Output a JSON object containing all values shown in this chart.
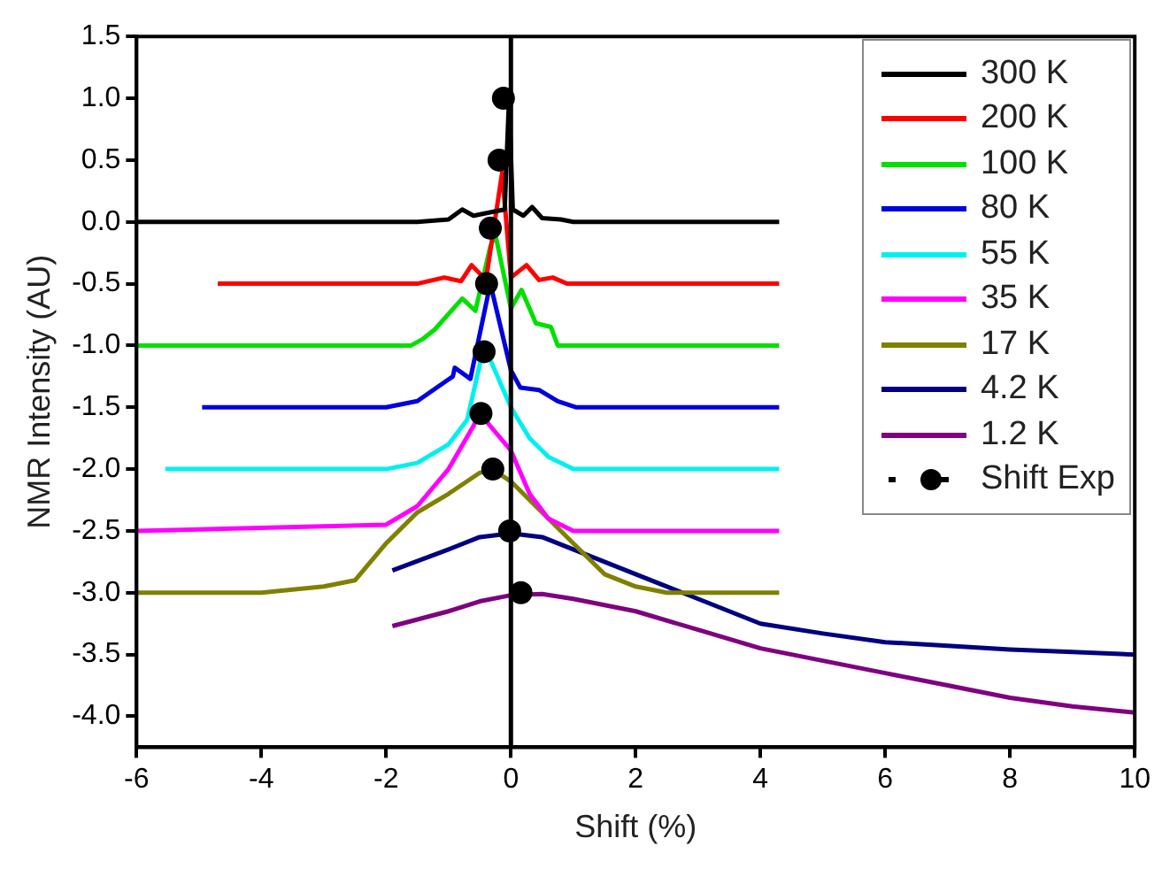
{
  "chart_data": {
    "type": "line",
    "xlabel": "Shift (%)",
    "ylabel": "NMR Intensity (AU)",
    "xlim": [
      -6,
      10
    ],
    "xticks": [
      -6,
      -4,
      -2,
      0,
      2,
      4,
      6,
      8,
      10
    ],
    "ylim": [
      -4.25,
      1.5
    ],
    "yticks": [
      {
        "value": -4,
        "label": "-4.0"
      },
      -3.5,
      {
        "value": -3,
        "label": "-3.0"
      },
      -2.5,
      {
        "value": -2,
        "label": "-2.0"
      },
      -1.5,
      {
        "value": -1,
        "label": "-1.0"
      },
      -0.5,
      {
        "value": 0,
        "label": "0.0"
      },
      0.5,
      {
        "value": 1,
        "label": "1.0"
      },
      1.5
    ],
    "grid": false,
    "legend": "top right",
    "marker": "none",
    "line_style": "solid",
    "ref_lines": [
      {
        "axis": "x",
        "value": 0,
        "color": "#000000"
      }
    ],
    "series": [
      {
        "name": "300 K",
        "color": "#000000",
        "x": [
          -6,
          -1.5,
          -1,
          -0.78,
          -0.6,
          -0.3,
          -0.1,
          -0.03,
          0.03,
          0.2,
          0.34,
          0.5,
          0.8,
          1,
          4.3
        ],
        "values": [
          0,
          0,
          0.02,
          0.1,
          0.05,
          0.08,
          0.1,
          1.0,
          0.1,
          0.05,
          0.12,
          0.03,
          0.02,
          0,
          0
        ]
      },
      {
        "name": "200 K",
        "color": "#ff0000",
        "x": [
          -4.7,
          -1.5,
          -1.07,
          -0.8,
          -0.63,
          -0.4,
          -0.14,
          0,
          0.25,
          0.45,
          0.67,
          0.9,
          4.3
        ],
        "values": [
          -0.5,
          -0.5,
          -0.45,
          -0.48,
          -0.35,
          -0.47,
          0.4,
          -0.45,
          -0.35,
          -0.47,
          -0.45,
          -0.5,
          -0.5
        ]
      },
      {
        "name": "100 K",
        "color": "#00e000",
        "x": [
          -6,
          -1.6,
          -1.42,
          -1.22,
          -0.78,
          -0.57,
          -0.33,
          -0.25,
          0,
          0.17,
          0.4,
          0.64,
          0.75,
          1,
          4.3
        ],
        "values": [
          -1.0,
          -1.0,
          -0.95,
          -0.87,
          -0.62,
          -0.72,
          -0.2,
          -0.1,
          -0.7,
          -0.55,
          -0.82,
          -0.85,
          -1.0,
          -1.0,
          -1.0
        ]
      },
      {
        "name": "80 K",
        "color": "#0000e0",
        "x": [
          -4.95,
          -2,
          -1.5,
          -0.93,
          -0.9,
          -0.65,
          -0.33,
          0,
          0.15,
          0.45,
          0.75,
          1.05,
          4.3
        ],
        "values": [
          -1.5,
          -1.5,
          -1.45,
          -1.25,
          -1.18,
          -1.27,
          -0.5,
          -1.2,
          -1.34,
          -1.36,
          -1.45,
          -1.5,
          -1.5
        ]
      },
      {
        "name": "55 K",
        "color": "#00f0f0",
        "x": [
          -5.54,
          -2,
          -1.5,
          -1,
          -0.7,
          -0.43,
          0,
          0.3,
          0.6,
          1,
          4.3
        ],
        "values": [
          -2.0,
          -2.0,
          -1.95,
          -1.8,
          -1.6,
          -1.0,
          -1.5,
          -1.75,
          -1.9,
          -2.0,
          -2.0
        ]
      },
      {
        "name": "35 K",
        "color": "#ff00ff",
        "x": [
          -6,
          -2,
          -1.5,
          -1,
          -0.6,
          -0.5,
          0,
          0.3,
          0.6,
          1,
          4.3
        ],
        "values": [
          -2.5,
          -2.45,
          -2.3,
          -2.0,
          -1.65,
          -1.55,
          -1.85,
          -2.2,
          -2.4,
          -2.5,
          -2.5
        ]
      },
      {
        "name": "17 K",
        "color": "#808000",
        "x": [
          -6,
          -4,
          -3,
          -2.5,
          -2,
          -1.5,
          -1,
          -0.5,
          -0.3,
          0,
          0.5,
          1,
          1.5,
          2,
          2.5,
          4.3
        ],
        "values": [
          -3.0,
          -3.0,
          -2.95,
          -2.9,
          -2.6,
          -2.35,
          -2.2,
          -2.03,
          -2.0,
          -2.1,
          -2.35,
          -2.6,
          -2.85,
          -2.95,
          -3.0,
          -3.0
        ]
      },
      {
        "name": "4.2 K",
        "color": "#000080",
        "x": [
          -1.9,
          -1,
          -0.5,
          0,
          0.5,
          1,
          2,
          3,
          4,
          5,
          6,
          7,
          8,
          9,
          10
        ],
        "values": [
          -2.82,
          -2.65,
          -2.55,
          -2.52,
          -2.55,
          -2.65,
          -2.85,
          -3.05,
          -3.25,
          -3.33,
          -3.4,
          -3.43,
          -3.46,
          -3.48,
          -3.5
        ]
      },
      {
        "name": "1.2 K",
        "color": "#800080",
        "x": [
          -1.9,
          -1,
          -0.5,
          0,
          0.5,
          1,
          2,
          3,
          4,
          5,
          6,
          7,
          8,
          9,
          10
        ],
        "values": [
          -3.27,
          -3.15,
          -3.07,
          -3.02,
          -3.01,
          -3.05,
          -3.15,
          -3.3,
          -3.45,
          -3.55,
          -3.65,
          -3.75,
          -3.85,
          -3.92,
          -3.97
        ]
      },
      {
        "name": "Shift Exp",
        "type": "scatter",
        "marker": "circle",
        "color": "#000000",
        "x": [
          -0.12,
          -0.19,
          -0.33,
          -0.39,
          -0.43,
          -0.48,
          -0.29,
          -0.02,
          0.16
        ],
        "values": [
          1.0,
          0.5,
          -0.05,
          -0.5,
          -1.05,
          -1.55,
          -2.0,
          -2.5,
          -3.0
        ]
      }
    ]
  }
}
